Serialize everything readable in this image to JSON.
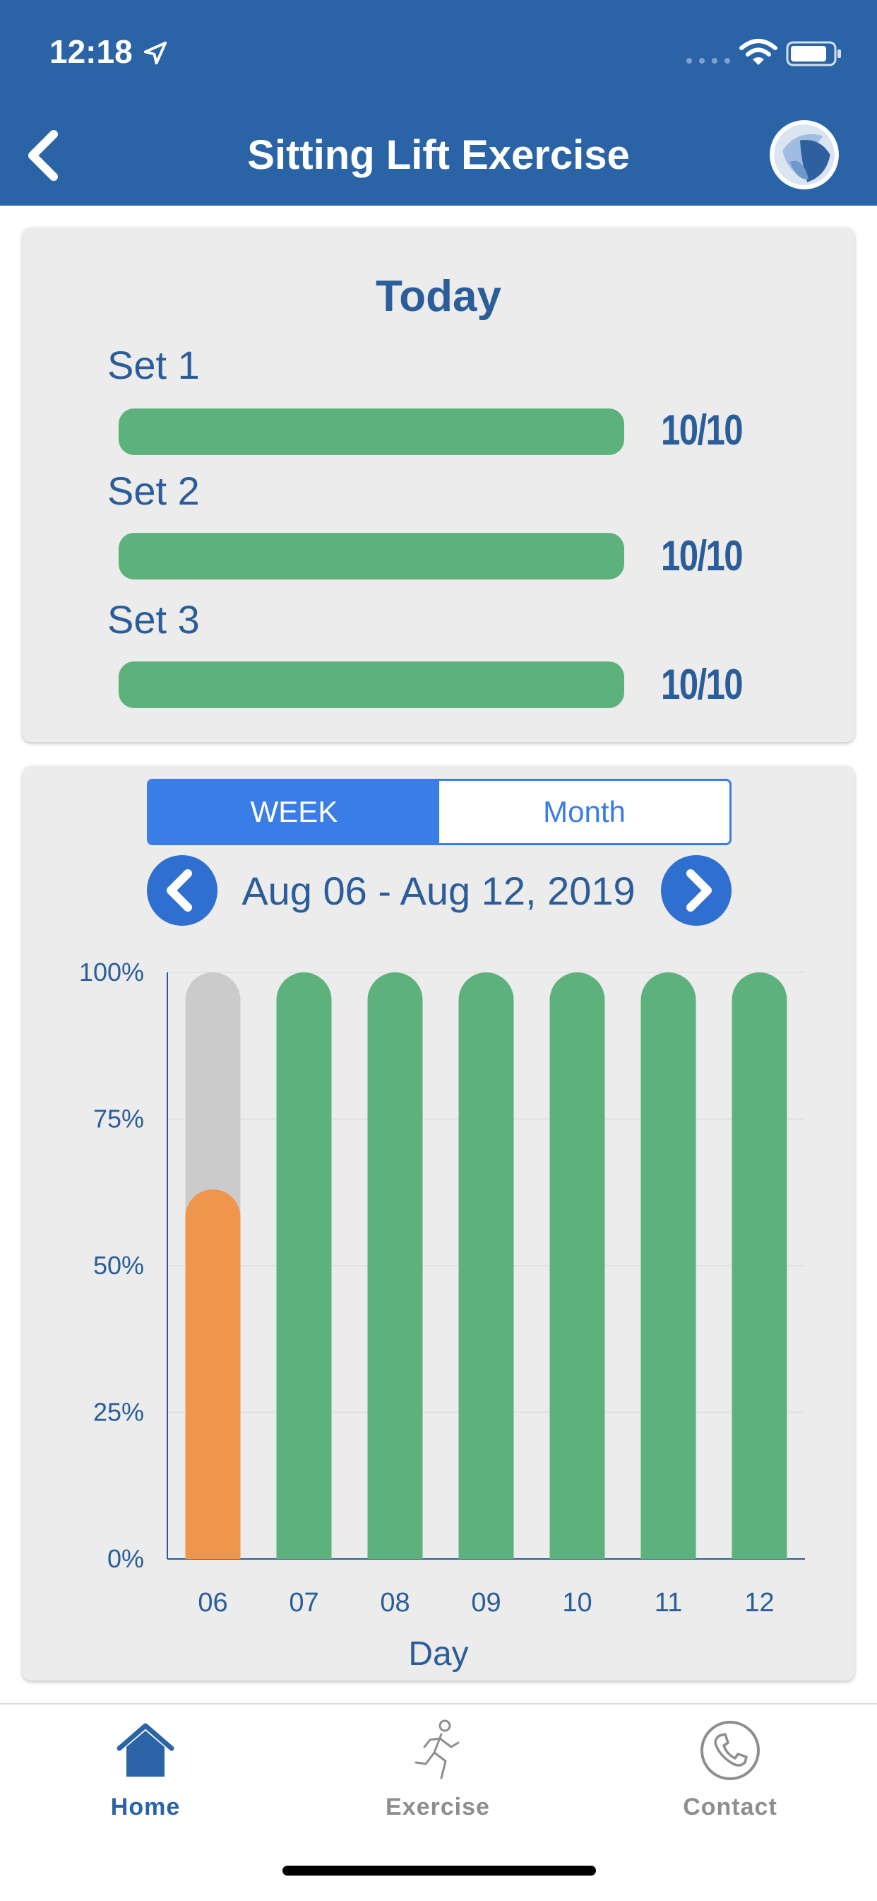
{
  "status_bar": {
    "time": "12:18"
  },
  "header": {
    "title": "Sitting Lift Exercise",
    "back_icon": "chevron-left-icon",
    "logo_icon": "app-logo-icon"
  },
  "today": {
    "title": "Today",
    "sets": [
      {
        "label": "Set 1",
        "value": "10/10",
        "fraction": 1.0
      },
      {
        "label": "Set 2",
        "value": "10/10",
        "fraction": 1.0
      },
      {
        "label": "Set 3",
        "value": "10/10",
        "fraction": 1.0
      }
    ]
  },
  "history": {
    "tabs": [
      {
        "label": "WEEK",
        "active": true
      },
      {
        "label": "Month",
        "active": false
      }
    ],
    "date_range": "Aug 06 - Aug 12, 2019",
    "prev_icon": "chevron-left-icon",
    "next_icon": "chevron-right-icon"
  },
  "chart_data": {
    "type": "bar",
    "categories": [
      "06",
      "07",
      "08",
      "09",
      "10",
      "11",
      "12"
    ],
    "values": [
      63,
      100,
      100,
      100,
      100,
      100,
      100
    ],
    "ylim": [
      0,
      100
    ],
    "yticks": [
      "0%",
      "25%",
      "50%",
      "75%",
      "100%"
    ],
    "xlabel": "Day",
    "ylabel": "",
    "grid": true,
    "colors": {
      "complete": "#5db17c",
      "partial": "#ef954c",
      "remaining": "#cbcbcb",
      "axis": "#2a5d9a"
    }
  },
  "tabbar": {
    "items": [
      {
        "label": "Home",
        "icon": "home-icon",
        "active": true
      },
      {
        "label": "Exercise",
        "icon": "running-person-icon",
        "active": false
      },
      {
        "label": "Contact",
        "icon": "phone-icon",
        "active": false
      }
    ]
  },
  "colors": {
    "brand": "#2a64a6",
    "accent": "#3a7de6",
    "inactive": "#8e8e8e"
  }
}
